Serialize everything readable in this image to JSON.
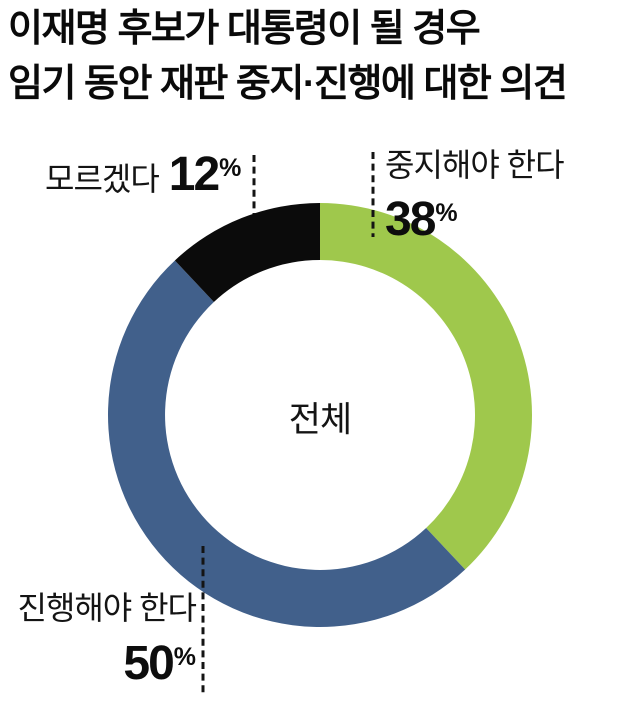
{
  "title": {
    "line1": "이재명 후보가 대통령이 될 경우",
    "line2": "임기 동안 재판 중지·진행에 대한 의견"
  },
  "chart_data": {
    "type": "pie",
    "variant": "donut",
    "title": "이재명 후보가 대통령이 될 경우 임기 동안 재판 중지·진행에 대한 의견",
    "center_label": "전체",
    "unit": "%",
    "start_angle_deg": 0,
    "direction": "clockwise",
    "legend_position": "callout-labels",
    "segments": [
      {
        "label": "중지해야 한다",
        "value": 38,
        "color": "#9fc84c"
      },
      {
        "label": "진행해야 한다",
        "value": 50,
        "color": "#41608b"
      },
      {
        "label": "모르겠다",
        "value": 12,
        "color": "#0b0b0b"
      }
    ]
  }
}
